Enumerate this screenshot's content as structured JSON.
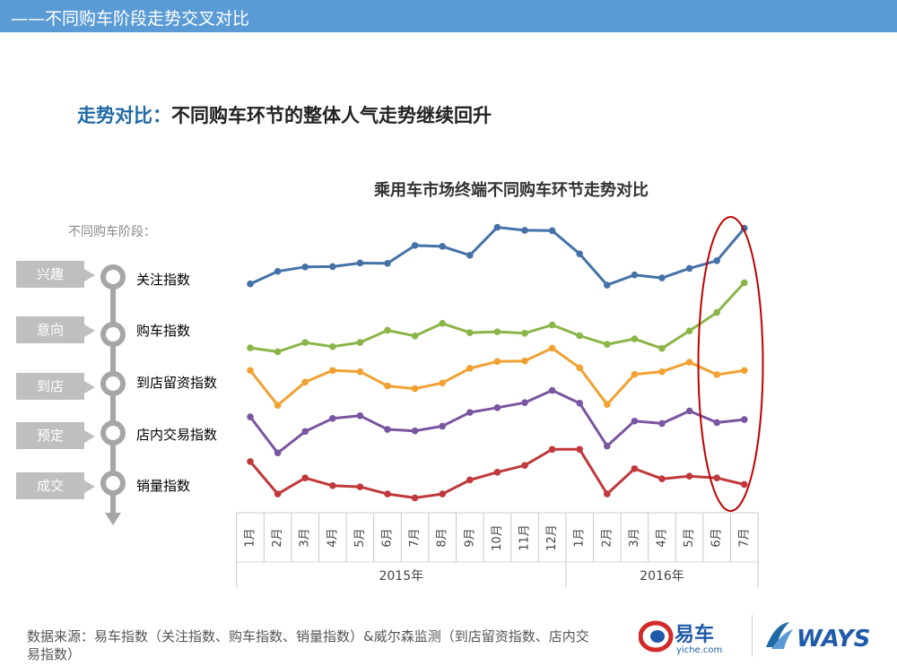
{
  "header": {
    "title": "——不同购车阶段走势交叉对比"
  },
  "headline": {
    "key": "走势对比：",
    "rest": "不同购车环节的整体人气走势继续回升"
  },
  "stages": {
    "caption": "不同购车阶段：",
    "items": [
      "兴趣",
      "意向",
      "到店",
      "预定",
      "成交"
    ]
  },
  "source": {
    "text": "数据来源：易车指数（关注指数、购车指数、销量指数）&威尔森监测（到店留资指数、店内交易指数）"
  },
  "logos": {
    "yiche_name": "易车",
    "yiche_site": "yiche.com",
    "ways_name": "WAYS"
  },
  "colors": {
    "header_bar": "#5b9bd5",
    "headline_key": "#1f6aa5",
    "series": [
      "#4472a8",
      "#8ab548",
      "#f0a132",
      "#7a55a0",
      "#c0393b"
    ],
    "highlight_ellipse": "#c00000"
  },
  "chart_data": {
    "type": "line",
    "title": "乘用车市场终端不同购车环节走势对比",
    "categories": [
      "1月",
      "2月",
      "3月",
      "4月",
      "5月",
      "6月",
      "7月",
      "8月",
      "9月",
      "10月",
      "11月",
      "12月",
      "1月",
      "2月",
      "3月",
      "4月",
      "5月",
      "6月",
      "7月"
    ],
    "year_groups": [
      {
        "label": "2015年",
        "count": 12
      },
      {
        "label": "2016年",
        "count": 7
      }
    ],
    "y_axis": {
      "visible": false,
      "scale": "relative index",
      "ylim": [
        0,
        100
      ]
    },
    "grid": false,
    "legend": "left, aligned with series",
    "highlight": {
      "shape": "ellipse",
      "covers_categories": [
        "6月",
        "7月"
      ],
      "year": "2016年"
    },
    "series": [
      {
        "name": "关注指数",
        "values": [
          76.9,
          81.1,
          82.6,
          82.7,
          83.9,
          83.8,
          89.8,
          89.5,
          86.5,
          95.9,
          94.9,
          94.8,
          87.0,
          76.5,
          79.9,
          78.9,
          82.1,
          84.7,
          95.6
        ]
      },
      {
        "name": "购车指数",
        "values": [
          55.4,
          54.1,
          57.2,
          55.8,
          57.2,
          61.3,
          59.4,
          63.6,
          60.5,
          60.8,
          60.3,
          63.1,
          59.5,
          56.6,
          58.4,
          55.2,
          61.1,
          67.3,
          77.3
        ]
      },
      {
        "name": "到店留资指数",
        "values": [
          47.8,
          36.1,
          43.9,
          47.8,
          47.4,
          42.6,
          41.7,
          43.6,
          48.5,
          50.8,
          51.0,
          55.3,
          48.7,
          36.4,
          46.5,
          47.4,
          50.6,
          46.4,
          47.8
        ]
      },
      {
        "name": "店内交易指数",
        "values": [
          32.2,
          20.1,
          27.3,
          31.7,
          32.6,
          28.0,
          27.5,
          29.1,
          33.7,
          35.3,
          37.0,
          41.1,
          36.8,
          22.4,
          30.8,
          30.0,
          34.2,
          30.3,
          31.3
        ]
      },
      {
        "name": "销量指数",
        "values": [
          17.2,
          6.3,
          11.7,
          9.1,
          8.7,
          6.3,
          5.0,
          6.3,
          11.0,
          13.6,
          15.9,
          21.3,
          21.3,
          6.3,
          14.8,
          11.4,
          12.3,
          11.7,
          9.5
        ]
      }
    ]
  }
}
